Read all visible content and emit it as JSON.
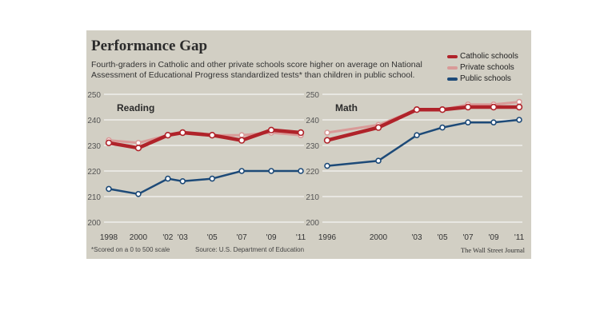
{
  "figure": {
    "title": "Performance Gap",
    "subtitle": "Fourth-graders in Catholic and other private schools score higher on average on National Assessment of Educational Progress standardized tests* than children in public school.",
    "footnote": "*Scored on a 0 to 500 scale",
    "source": "Source: U.S. Department of Education",
    "credit": "The Wall Street Journal"
  },
  "colors": {
    "background": "#d2cfc4",
    "catholic": "#b0232a",
    "private": "#d99a98",
    "public": "#1d4a78",
    "grid": "#ffffff"
  },
  "chart_data": [
    {
      "type": "line",
      "title": "Reading",
      "x": [
        1998,
        2000,
        2002,
        2003,
        2005,
        2007,
        2009,
        2011
      ],
      "tick_labels": [
        "1998",
        "2000",
        "'02",
        "'03",
        "'05",
        "'07",
        "'09",
        "'11"
      ],
      "ylim": [
        200,
        250
      ],
      "yticks": [
        200,
        210,
        220,
        230,
        240,
        250
      ],
      "grid": true,
      "legend": "top-right",
      "series": [
        {
          "name": "Catholic schools",
          "values": [
            231,
            229,
            234,
            235,
            234,
            232,
            236,
            235
          ]
        },
        {
          "name": "Private schools",
          "values": [
            232,
            231,
            234,
            235,
            234,
            234,
            235,
            234
          ]
        },
        {
          "name": "Public schools",
          "values": [
            213,
            211,
            217,
            216,
            217,
            220,
            220,
            220
          ]
        }
      ]
    },
    {
      "type": "line",
      "title": "Math",
      "x": [
        1996,
        2000,
        2003,
        2005,
        2007,
        2009,
        2011
      ],
      "tick_labels": [
        "1996",
        "2000",
        "'03",
        "'05",
        "'07",
        "'09",
        "'11"
      ],
      "ylim": [
        200,
        250
      ],
      "yticks": [
        200,
        210,
        220,
        230,
        240,
        250
      ],
      "grid": true,
      "series": [
        {
          "name": "Catholic schools",
          "values": [
            232,
            237,
            244,
            244,
            245,
            245,
            245
          ]
        },
        {
          "name": "Private schools",
          "values": [
            235,
            238,
            244,
            244,
            246,
            246,
            247
          ]
        },
        {
          "name": "Public schools",
          "values": [
            222,
            224,
            234,
            237,
            239,
            239,
            240
          ]
        }
      ]
    }
  ]
}
